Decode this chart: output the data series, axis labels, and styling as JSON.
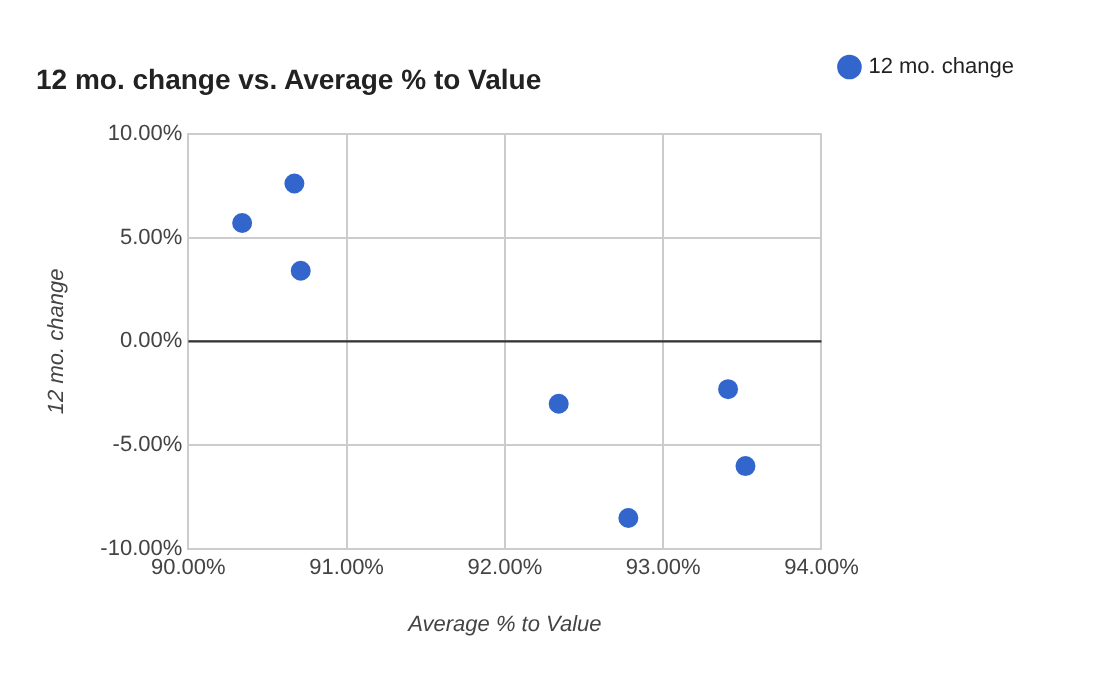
{
  "chart_data": {
    "type": "scatter",
    "title": "12 mo. change vs. Average % to Value",
    "xlabel": "Average % to Value",
    "ylabel": "12 mo. change",
    "x": [
      90.34,
      90.67,
      90.71,
      92.34,
      92.78,
      93.41,
      93.52
    ],
    "series": [
      {
        "name": "12 mo. change",
        "color": "#3366cc",
        "values": [
          5.7,
          7.6,
          3.4,
          -3.0,
          -8.5,
          -2.3,
          -6.0
        ]
      }
    ],
    "xlim": [
      90,
      94
    ],
    "xticks": [
      {
        "value": 90,
        "label": "90.00%"
      },
      {
        "value": 91,
        "label": "91.00%"
      },
      {
        "value": 92,
        "label": "92.00%"
      },
      {
        "value": 93,
        "label": "93.00%"
      },
      {
        "value": 94,
        "label": "94.00%"
      }
    ],
    "ylim": [
      -10,
      10
    ],
    "yticks": [
      {
        "value": -10,
        "label": "-10.00%"
      },
      {
        "value": -5,
        "label": "-5.00%"
      },
      {
        "value": 0,
        "label": "0.00%"
      },
      {
        "value": 5,
        "label": "5.00%"
      },
      {
        "value": 10,
        "label": "10.00%"
      }
    ],
    "ref_lines": [
      {
        "axis": "y",
        "value": 0,
        "color": "#333333"
      }
    ],
    "grid": true,
    "legend": "top right",
    "marker": "circle"
  }
}
